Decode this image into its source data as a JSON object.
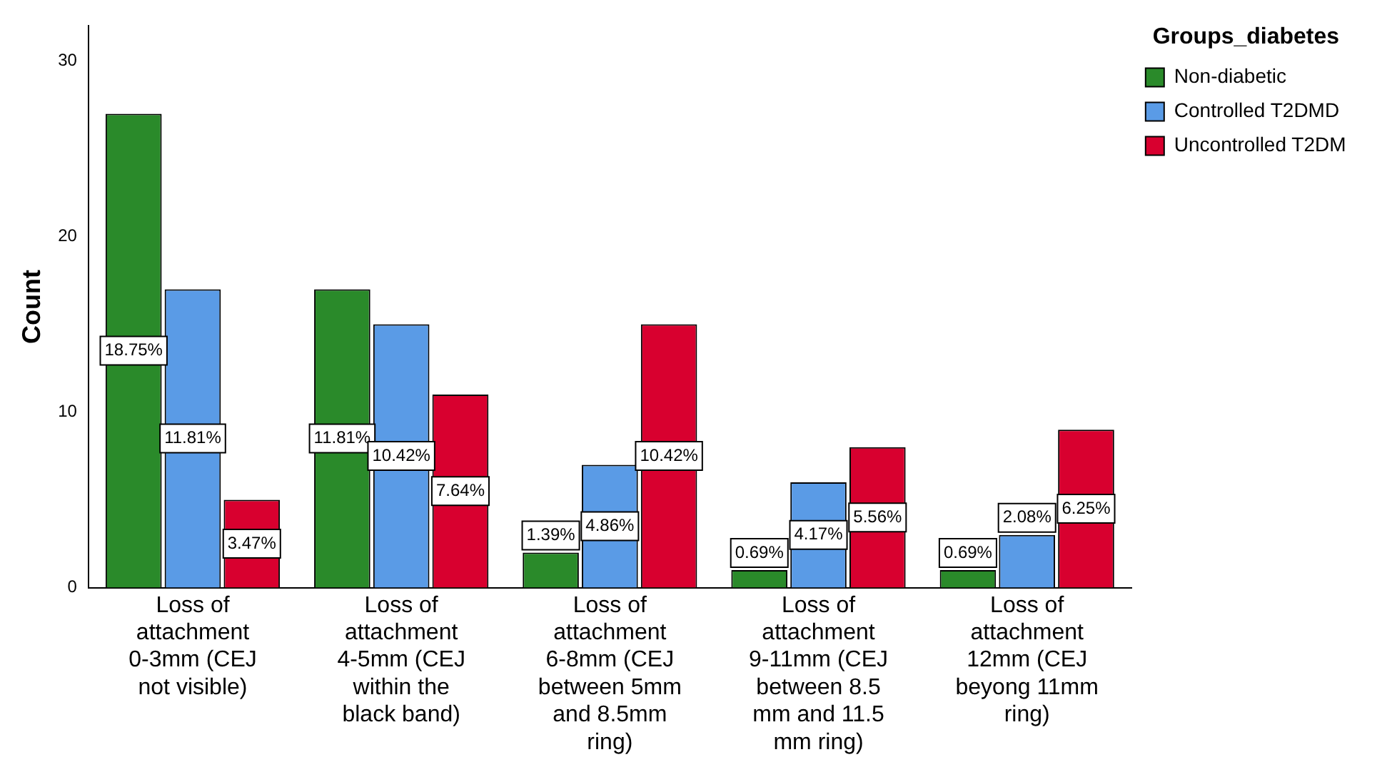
{
  "chart_data": {
    "type": "bar",
    "ylabel": "Count",
    "legend_title": "Groups_diabetes",
    "legend": "top right",
    "grid": false,
    "categories": [
      "Loss of attachment 0-3mm (CEJ not visible)",
      "Loss of attachment 4-5mm (CEJ within the black band)",
      "Loss of attachment 6-8mm (CEJ between 5mm and 8.5mm ring)",
      "Loss of attachment 9-11mm (CEJ between 8.5 mm and 11.5 mm ring)",
      "Loss of attachment 12mm (CEJ beyong 11mm ring)"
    ],
    "ylim": [
      0,
      32
    ],
    "yticks": [
      0,
      10,
      20,
      30
    ],
    "series": [
      {
        "name": "Non-diabetic",
        "color": "#2a8a2a",
        "values": [
          27,
          17,
          2,
          1,
          1
        ]
      },
      {
        "name": "Controlled T2DMD",
        "color": "#5a9be6",
        "values": [
          17,
          15,
          7,
          6,
          3
        ]
      },
      {
        "name": "Uncontrolled T2DM",
        "color": "#d8002f",
        "values": [
          5,
          11,
          15,
          8,
          9
        ]
      }
    ],
    "annotations": [
      "18.75%",
      "11.81%",
      "1.39%",
      "0.69%",
      "0.69%",
      "11.81%",
      "10.42%",
      "4.86%",
      "4.17%",
      "2.08%",
      "3.47%",
      "7.64%",
      "10.42%",
      "5.56%",
      "6.25%"
    ]
  }
}
